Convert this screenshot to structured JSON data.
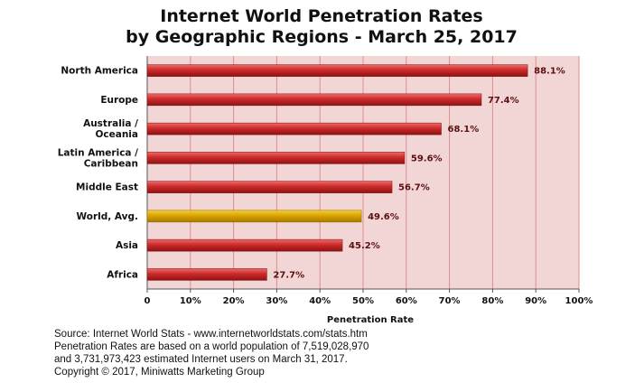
{
  "chart_data": {
    "type": "bar",
    "orientation": "horizontal",
    "title_lines": [
      "Internet World Penetration Rates",
      "by Geographic Regions - March 25, 2017"
    ],
    "categories": [
      [
        "North America"
      ],
      [
        "Europe"
      ],
      [
        "Australia /",
        "Oceania"
      ],
      [
        "Latin America /",
        "Caribbean"
      ],
      [
        "Middle East"
      ],
      [
        "World, Avg."
      ],
      [
        "Asia"
      ],
      [
        "Africa"
      ]
    ],
    "values": [
      88.1,
      77.4,
      68.1,
      59.6,
      56.7,
      49.6,
      45.2,
      27.7
    ],
    "value_labels": [
      "88.1%",
      "77.4%",
      "68.1%",
      "59.6%",
      "56.7%",
      "49.6%",
      "45.2%",
      "27.7%"
    ],
    "highlight_index": 5,
    "xlabel": "Penetration Rate",
    "xlim": [
      0,
      100
    ],
    "xticks": [
      0,
      10,
      20,
      30,
      40,
      50,
      60,
      70,
      80,
      90,
      100
    ],
    "xtick_labels": [
      "0",
      "10%",
      "20%",
      "30%",
      "40%",
      "50%",
      "60%",
      "70%",
      "80%",
      "90%",
      "100%"
    ],
    "grid": true,
    "colors": {
      "bar": "#cc2a2a",
      "bar_highlight": "#d9a400",
      "plot_background": "#f2d5d5",
      "gridline": "#d98f8f"
    }
  },
  "footer": {
    "lines": [
      "Source: Internet World Stats - www.internetworldstats.com/stats.htm",
      "Penetration Rates are based on a world population of 7,519,028,970",
      "and 3,731,973,423 estimated Internet users on March 31, 2017.",
      "Copyright © 2017, Miniwatts Marketing Group"
    ]
  }
}
